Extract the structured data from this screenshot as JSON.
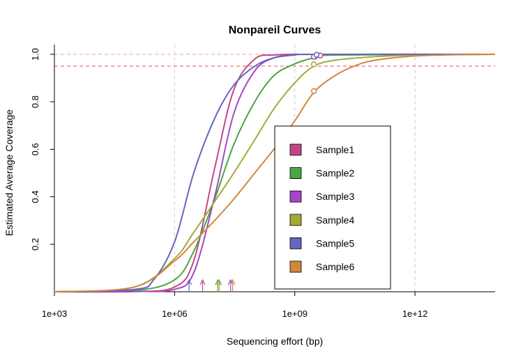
{
  "chart_data": {
    "type": "line",
    "title": "Nonpareil Curves",
    "xlabel": "Sequencing effort (bp)",
    "ylabel": "Estimated Average Coverage",
    "x_scale": "log10",
    "xlim": [
      1000,
      100000000000000
    ],
    "ylim": [
      0,
      1
    ],
    "x_ticks": [
      {
        "value": 1000,
        "label": "1e+03"
      },
      {
        "value": 1000000,
        "label": "1e+06"
      },
      {
        "value": 1000000000,
        "label": "1e+09"
      },
      {
        "value": 1000000000000,
        "label": "1e+12"
      }
    ],
    "y_ticks": [
      {
        "value": 0.2,
        "label": "0.2"
      },
      {
        "value": 0.4,
        "label": "0.4"
      },
      {
        "value": 0.6,
        "label": "0.6"
      },
      {
        "value": 0.8,
        "label": "0.8"
      },
      {
        "value": 1.0,
        "label": "1.0"
      }
    ],
    "reference_lines": [
      {
        "axis": "y",
        "value": 0.95,
        "color": "#e05260",
        "style": "dashed"
      },
      {
        "axis": "y",
        "value": 1.0,
        "color": "#f4a38a",
        "style": "dashed"
      }
    ],
    "vertical_gridlines": [
      1000000,
      1000000000,
      1000000000000
    ],
    "legend_position": "center-right",
    "series": [
      {
        "name": "Sample1",
        "color": "#c44587",
        "x": [
          1000,
          100000,
          1000000,
          3000000,
          10000000,
          30000000,
          100000000,
          300000000,
          1000000000,
          3000000000,
          100000000000000
        ],
        "y": [
          0,
          0.001,
          0.02,
          0.13,
          0.52,
          0.85,
          0.98,
          0.997,
          1.0,
          1.0,
          1.0
        ],
        "marker": {
          "x": 4300000000,
          "y": 0.995
        },
        "arrow_x": 5000000
      },
      {
        "name": "Sample2",
        "color": "#4aa542",
        "x": [
          1000,
          100000,
          1000000,
          3000000,
          10000000,
          30000000,
          100000000,
          300000000,
          1000000000,
          3000000000,
          10000000000,
          100000000000000
        ],
        "y": [
          0,
          0.005,
          0.05,
          0.17,
          0.39,
          0.62,
          0.8,
          0.91,
          0.96,
          0.985,
          0.997,
          1.0
        ],
        "marker": {
          "x": 3200000000,
          "y": 0.99
        },
        "arrow_x": 12000000
      },
      {
        "name": "Sample3",
        "color": "#a545c4",
        "x": [
          1000,
          100000,
          1000000,
          3000000,
          10000000,
          30000000,
          100000000,
          300000000,
          1000000000,
          3000000000,
          100000000000000
        ],
        "y": [
          0,
          0.001,
          0.01,
          0.08,
          0.4,
          0.75,
          0.93,
          0.985,
          0.997,
          1.0,
          1.0
        ],
        "marker": {
          "x": 3000000000,
          "y": 0.99
        },
        "arrow_x": 25000000
      },
      {
        "name": "Sample4",
        "color": "#a3aa37",
        "x": [
          1000,
          100000,
          1000000,
          3000000,
          10000000,
          30000000,
          100000000,
          300000000,
          1000000000,
          3000000000,
          10000000000,
          100000000000,
          1000000000000,
          10000000000000,
          100000000000000
        ],
        "y": [
          0,
          0.02,
          0.14,
          0.25,
          0.38,
          0.5,
          0.64,
          0.77,
          0.88,
          0.95,
          0.975,
          0.99,
          0.997,
          0.999,
          1.0
        ],
        "marker": {
          "x": 3000000000,
          "y": 0.958
        },
        "arrow_x": 13000000
      },
      {
        "name": "Sample5",
        "color": "#6466c0",
        "x": [
          1000,
          100000,
          300000,
          1000000,
          3000000,
          10000000,
          30000000,
          100000000,
          300000000,
          1000000000,
          3000000000,
          100000000000000
        ],
        "y": [
          0,
          0.01,
          0.05,
          0.21,
          0.5,
          0.73,
          0.87,
          0.95,
          0.985,
          0.997,
          1.0,
          1.0
        ],
        "marker": {
          "x": 3500000000,
          "y": 0.998
        },
        "arrow_x": 2300000
      },
      {
        "name": "Sample6",
        "color": "#d0873a",
        "x": [
          1000,
          100000,
          1000000,
          3000000,
          10000000,
          30000000,
          100000000,
          300000000,
          1000000000,
          3000000000,
          10000000000,
          30000000000,
          100000000000,
          1000000000000,
          10000000000000,
          100000000000000
        ],
        "y": [
          0,
          0.02,
          0.13,
          0.21,
          0.3,
          0.39,
          0.5,
          0.6,
          0.72,
          0.84,
          0.91,
          0.95,
          0.975,
          0.993,
          0.998,
          1.0
        ],
        "marker": {
          "x": 3000000000,
          "y": 0.845
        },
        "arrow_x": 28000000
      }
    ]
  }
}
